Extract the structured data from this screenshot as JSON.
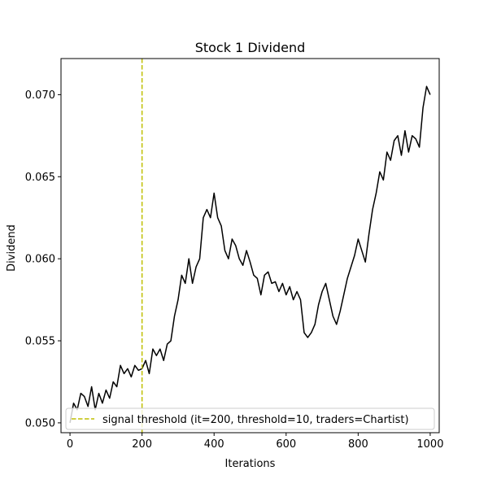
{
  "chart_data": {
    "type": "line",
    "title": "Stock 1 Dividend",
    "xlabel": "Iterations",
    "ylabel": "Dividend",
    "xlim": [
      -25,
      1025
    ],
    "ylim": [
      0.0494,
      0.0722
    ],
    "xticks": [
      0,
      200,
      400,
      600,
      800,
      1000
    ],
    "xtick_labels": [
      "0",
      "200",
      "400",
      "600",
      "800",
      "1000"
    ],
    "yticks": [
      0.05,
      0.055,
      0.06,
      0.065,
      0.07
    ],
    "ytick_labels": [
      "0.050",
      "0.055",
      "0.060",
      "0.065",
      "0.070"
    ],
    "grid": false,
    "legend_position": "lower-right",
    "series": [
      {
        "name": "Dividend",
        "color": "#000000",
        "x": [
          0,
          10,
          20,
          30,
          40,
          50,
          60,
          70,
          80,
          90,
          100,
          110,
          120,
          130,
          140,
          150,
          160,
          170,
          180,
          190,
          200,
          210,
          220,
          230,
          240,
          250,
          260,
          270,
          280,
          290,
          300,
          310,
          320,
          330,
          340,
          350,
          360,
          370,
          380,
          390,
          400,
          410,
          420,
          430,
          440,
          450,
          460,
          470,
          480,
          490,
          500,
          510,
          520,
          530,
          540,
          550,
          560,
          570,
          580,
          590,
          600,
          610,
          620,
          630,
          640,
          650,
          660,
          670,
          680,
          690,
          700,
          710,
          720,
          730,
          740,
          750,
          760,
          770,
          780,
          790,
          800,
          810,
          820,
          830,
          840,
          850,
          860,
          870,
          880,
          890,
          900,
          910,
          920,
          930,
          940,
          950,
          960,
          970,
          980,
          990,
          1000
        ],
        "values": [
          0.05,
          0.0512,
          0.0508,
          0.0518,
          0.0516,
          0.051,
          0.0522,
          0.0508,
          0.0518,
          0.0512,
          0.052,
          0.0515,
          0.0525,
          0.0522,
          0.0535,
          0.053,
          0.0533,
          0.0528,
          0.0535,
          0.0532,
          0.0533,
          0.0538,
          0.053,
          0.0545,
          0.0541,
          0.0545,
          0.0538,
          0.0548,
          0.055,
          0.0565,
          0.0575,
          0.059,
          0.0585,
          0.06,
          0.0585,
          0.0595,
          0.06,
          0.0625,
          0.063,
          0.0625,
          0.064,
          0.0625,
          0.062,
          0.0605,
          0.06,
          0.0612,
          0.0608,
          0.06,
          0.0596,
          0.0605,
          0.0598,
          0.059,
          0.0588,
          0.0578,
          0.059,
          0.0592,
          0.0585,
          0.0586,
          0.058,
          0.0585,
          0.0578,
          0.0583,
          0.0575,
          0.058,
          0.0575,
          0.0555,
          0.0552,
          0.0555,
          0.056,
          0.0572,
          0.058,
          0.0585,
          0.0575,
          0.0565,
          0.056,
          0.0568,
          0.0578,
          0.0588,
          0.0595,
          0.0602,
          0.0612,
          0.0605,
          0.0598,
          0.0615,
          0.063,
          0.064,
          0.0653,
          0.0648,
          0.0665,
          0.066,
          0.0672,
          0.0675,
          0.0663,
          0.0678,
          0.0665,
          0.0675,
          0.0673,
          0.0668,
          0.0692,
          0.0705,
          0.07
        ]
      }
    ],
    "reference_lines": [
      {
        "orientation": "vertical",
        "x": 200,
        "style": "dashed",
        "color": "#bfbf00",
        "label": "signal threshold (it=200, threshold=10, traders=Chartist)"
      }
    ]
  }
}
